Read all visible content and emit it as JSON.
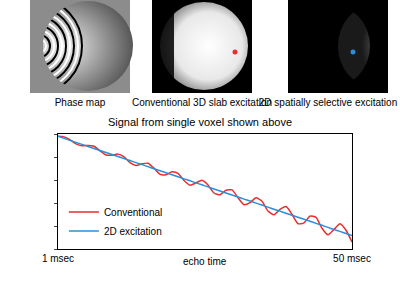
{
  "panels": [
    "Phase map",
    "Conventional 3D slab excitation",
    "2D spatially selective excitation"
  ],
  "chart_data": {
    "type": "line",
    "title": "Signal from single voxel shown above",
    "x_label": "echo time",
    "x": [
      1,
      2,
      3,
      4,
      5,
      6,
      7,
      8,
      9,
      10,
      11,
      12,
      13,
      14,
      15,
      16,
      17,
      18,
      19,
      20,
      21,
      22,
      23,
      24,
      25,
      26,
      27,
      28,
      29,
      30,
      31,
      32,
      33,
      34,
      35,
      36,
      37,
      38,
      39,
      40,
      41,
      42,
      43,
      44,
      45,
      46,
      47,
      48,
      49,
      50
    ],
    "series": [
      {
        "name": "Conventional",
        "color": "#e62e2e",
        "values": [
          0.98,
          0.975,
          0.95,
          0.914,
          0.897,
          0.901,
          0.893,
          0.854,
          0.818,
          0.816,
          0.825,
          0.802,
          0.752,
          0.727,
          0.741,
          0.746,
          0.703,
          0.65,
          0.646,
          0.671,
          0.657,
          0.596,
          0.555,
          0.575,
          0.598,
          0.557,
          0.487,
          0.472,
          0.511,
          0.514,
          0.446,
          0.385,
          0.403,
          0.445,
          0.415,
          0.33,
          0.297,
          0.344,
          0.369,
          0.302,
          0.22,
          0.227,
          0.286,
          0.275,
          0.18,
          0.123,
          0.17,
          0.22,
          0.163,
          0.06
        ]
      },
      {
        "name": "2D excitation",
        "color": "#2a8fd8",
        "values": [
          0.98,
          0.962,
          0.945,
          0.927,
          0.91,
          0.892,
          0.874,
          0.857,
          0.839,
          0.822,
          0.804,
          0.786,
          0.769,
          0.751,
          0.734,
          0.716,
          0.698,
          0.681,
          0.663,
          0.646,
          0.628,
          0.61,
          0.593,
          0.575,
          0.558,
          0.54,
          0.522,
          0.505,
          0.487,
          0.47,
          0.452,
          0.434,
          0.417,
          0.399,
          0.382,
          0.364,
          0.346,
          0.329,
          0.311,
          0.294,
          0.276,
          0.258,
          0.241,
          0.223,
          0.206,
          0.188,
          0.17,
          0.153,
          0.135,
          0.118
        ]
      }
    ],
    "xlim": [
      1,
      50
    ],
    "xticks": [
      {
        "value": 1,
        "label": "1 msec"
      },
      {
        "value": 50,
        "label": "50 msec"
      }
    ],
    "ylim": [
      0,
      1
    ],
    "yticks": [
      0,
      0.2,
      0.4,
      0.6,
      0.8,
      1
    ],
    "tick_labels": "x",
    "grid": false,
    "legend": "lower left"
  }
}
